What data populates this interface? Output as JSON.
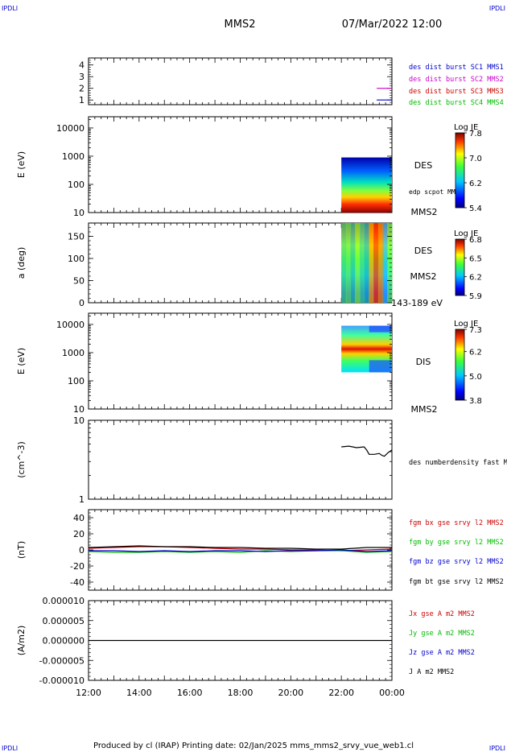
{
  "header": {
    "corner_tl": "IPDLI",
    "corner_tr": "IPDLI",
    "corner_bl": "IPDLI",
    "corner_br": "IPDLI",
    "spacecraft": "MMS2",
    "date": "07/Mar/2022 12:00"
  },
  "footer": {
    "text": "Produced by cl (IRAP)   Printing date: 02/Jan/2025   mms_mms2_srvy_vue_web1.cl"
  },
  "colors": {
    "blue": "#0000cc",
    "magenta": "#cc00cc",
    "red": "#cc0000",
    "green": "#00bb00",
    "black": "#000000"
  },
  "time_axis": {
    "tick_labels": [
      "12:00",
      "14:00",
      "16:00",
      "18:00",
      "20:00",
      "22:00",
      "00:00"
    ],
    "range_hours": [
      12,
      24
    ]
  },
  "chart_data": [
    {
      "type": "line",
      "ylabel": "",
      "yticks": [
        "1",
        "2",
        "3",
        "4"
      ],
      "ylim": [
        0.6,
        4.6
      ],
      "legend": [
        {
          "name": "des dist burst SC1 MMS1",
          "color": "#0000cc"
        },
        {
          "name": "des dist burst SC2 MMS2",
          "color": "#cc00cc"
        },
        {
          "name": "des dist burst SC3 MMS3",
          "color": "#cc0000"
        },
        {
          "name": "des dist burst SC4 MMS4",
          "color": "#00bb00"
        }
      ],
      "series": [
        {
          "name": "des dist burst SC2 MMS2",
          "color": "#cc00cc",
          "x": [
            23.4,
            24.0
          ],
          "y": [
            2,
            2
          ]
        },
        {
          "name": "des dist burst SC1 MMS1",
          "color": "#0000cc",
          "x": [
            23.4,
            24.0
          ],
          "y": [
            1,
            1
          ]
        }
      ]
    },
    {
      "type": "heatmap",
      "ylabel": "E (eV)",
      "yscale": "log",
      "yticks": [
        "10",
        "100",
        "1000",
        "10000"
      ],
      "ylim": [
        10,
        25000
      ],
      "side_labels": [
        "DES",
        "edp scpot MMS2",
        "MMS2"
      ],
      "colorbar": {
        "title": "Log JE",
        "ticks": [
          "7.8",
          "7.0",
          "6.2",
          "5.4"
        ],
        "range": [
          5.4,
          7.8
        ]
      },
      "data_extent": {
        "x": [
          22.0,
          24.0
        ],
        "y": [
          10,
          900
        ]
      }
    },
    {
      "type": "heatmap",
      "ylabel": "a (deg)",
      "yticks": [
        "0",
        "50",
        "100",
        "150"
      ],
      "ylim": [
        0,
        180
      ],
      "side_labels": [
        "DES",
        "MMS2",
        "143-189 eV"
      ],
      "colorbar": {
        "title": "Log JE",
        "ticks": [
          "6.8",
          "6.5",
          "6.2",
          "5.9"
        ],
        "range": [
          5.9,
          6.8
        ]
      },
      "data_extent": {
        "x": [
          22.0,
          24.0
        ],
        "y": [
          0,
          180
        ]
      }
    },
    {
      "type": "heatmap",
      "ylabel": "E (eV)",
      "yscale": "log",
      "yticks": [
        "10",
        "100",
        "1000",
        "10000"
      ],
      "ylim": [
        10,
        25000
      ],
      "side_labels": [
        "DIS",
        "MMS2"
      ],
      "colorbar": {
        "title": "Log JE",
        "ticks": [
          "7.3",
          "6.2",
          "5.0",
          "3.8"
        ],
        "range": [
          3.8,
          7.3
        ]
      },
      "data_extent": {
        "x": [
          22.0,
          24.0
        ],
        "y": [
          200,
          9000
        ]
      }
    },
    {
      "type": "line",
      "ylabel": "(cm^-3)",
      "yscale": "log",
      "yticks": [
        "1",
        "10"
      ],
      "ylim": [
        1,
        10
      ],
      "legend": [
        {
          "name": "des numberdensity fast M",
          "color": "#000000"
        }
      ],
      "series": [
        {
          "name": "des numberdensity fast M",
          "color": "#000000",
          "x": [
            22.0,
            22.3,
            22.6,
            22.9,
            23.0,
            23.1,
            23.3,
            23.5,
            23.6,
            23.7,
            23.85,
            24.0
          ],
          "y": [
            4.6,
            4.7,
            4.5,
            4.6,
            4.2,
            3.7,
            3.7,
            3.8,
            3.6,
            3.5,
            3.9,
            4.2
          ]
        }
      ]
    },
    {
      "type": "line",
      "ylabel": "(nT)",
      "yticks": [
        "-40",
        "-20",
        "0",
        "20",
        "40"
      ],
      "ylim": [
        -50,
        50
      ],
      "legend": [
        {
          "name": "fgm bx gse srvy l2 MMS2",
          "color": "#cc0000"
        },
        {
          "name": "fgm by gse srvy l2 MMS2",
          "color": "#00bb00"
        },
        {
          "name": "fgm bz gse srvy l2 MMS2",
          "color": "#0000cc"
        },
        {
          "name": "fgm bt gse srvy l2 MMS2",
          "color": "#000000"
        }
      ],
      "series": [
        {
          "name": "fgm bx gse srvy l2 MMS2",
          "color": "#cc0000",
          "x": [
            12,
            13,
            14,
            15,
            16,
            17,
            18,
            19,
            20,
            21,
            22,
            23,
            24
          ],
          "y": [
            2,
            3,
            4,
            4,
            3,
            2,
            1,
            1,
            0,
            0,
            -1,
            0,
            1
          ]
        },
        {
          "name": "fgm by gse srvy l2 MMS2",
          "color": "#00bb00",
          "x": [
            12,
            13,
            14,
            15,
            16,
            17,
            18,
            19,
            20,
            21,
            22,
            23,
            24
          ],
          "y": [
            -2,
            -3,
            -3,
            -2,
            -3,
            -2,
            -3,
            -1,
            -2,
            -1,
            -1,
            -3,
            -2
          ]
        },
        {
          "name": "fgm bz gse srvy l2 MMS2",
          "color": "#0000cc",
          "x": [
            12,
            13,
            14,
            15,
            16,
            17,
            18,
            19,
            20,
            21,
            22,
            23,
            24
          ],
          "y": [
            -1,
            -1,
            -2,
            -1,
            -2,
            -1,
            -1,
            -2,
            -1,
            -1,
            0,
            -2,
            -1
          ]
        },
        {
          "name": "fgm bt gse srvy l2 MMS2",
          "color": "#000000",
          "x": [
            12,
            13,
            14,
            15,
            16,
            17,
            18,
            19,
            20,
            21,
            22,
            23,
            24
          ],
          "y": [
            3,
            4,
            5,
            4,
            4,
            3,
            3,
            2,
            2,
            1,
            1,
            3,
            3
          ]
        }
      ]
    },
    {
      "type": "line",
      "ylabel": "(A/m2)",
      "yticks": [
        "-0.000010",
        "-0.000005",
        "0.000000",
        "0.000005",
        "0.000010"
      ],
      "ylim": [
        -1e-05,
        1e-05
      ],
      "legend": [
        {
          "name": "Jx gse A m2 MMS2",
          "color": "#cc0000"
        },
        {
          "name": "Jy gse A m2 MMS2",
          "color": "#00bb00"
        },
        {
          "name": "Jz gse A m2 MMS2",
          "color": "#0000cc"
        },
        {
          "name": "J A m2 MMS2",
          "color": "#000000"
        }
      ],
      "series": [
        {
          "name": "J A m2 MMS2",
          "color": "#000000",
          "x": [
            12,
            24
          ],
          "y": [
            0,
            0
          ]
        }
      ]
    }
  ]
}
